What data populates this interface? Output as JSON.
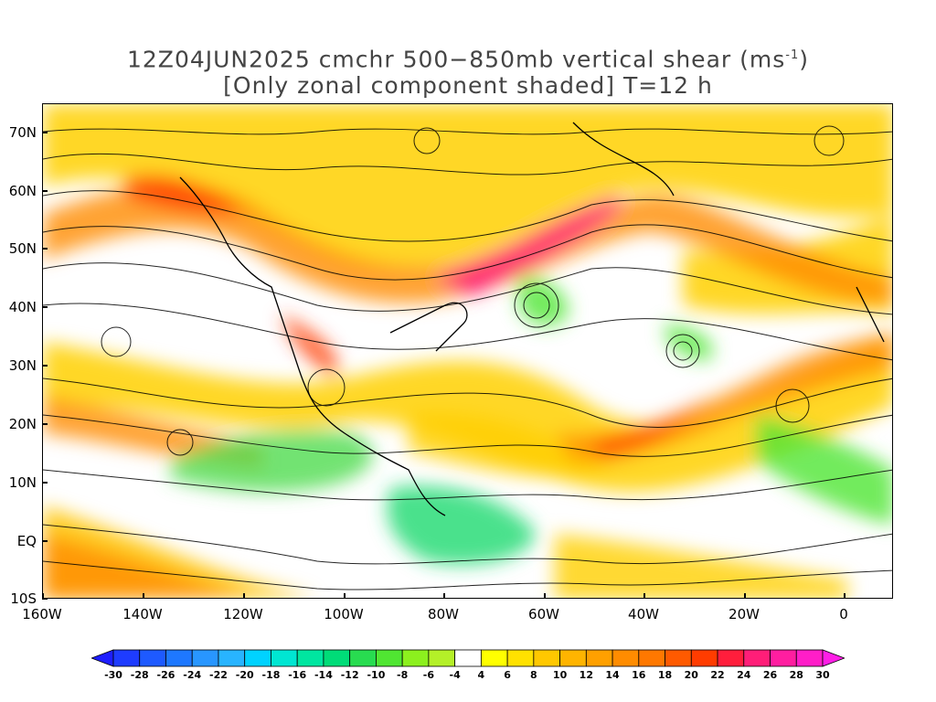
{
  "title": {
    "line1_prefix": "12Z04JUN2025 cmchr 500−850mb vertical shear (ms",
    "line1_sup": "-1",
    "line1_suffix": ")",
    "line2": "[Only zonal component shaded] T=12 h"
  },
  "axes": {
    "lat_labels": [
      "70N",
      "60N",
      "50N",
      "40N",
      "30N",
      "20N",
      "10N",
      "EQ",
      "10S"
    ],
    "lat_values": [
      70,
      60,
      50,
      40,
      30,
      20,
      10,
      0,
      -10
    ],
    "lon_labels": [
      "160W",
      "140W",
      "120W",
      "100W",
      "80W",
      "60W",
      "40W",
      "20W",
      "0"
    ],
    "lon_values": [
      -160,
      -140,
      -120,
      -100,
      -80,
      -60,
      -40,
      -20,
      0
    ],
    "lat_range": [
      -10,
      75
    ],
    "lon_range": [
      -160,
      10
    ]
  },
  "colorbar": {
    "labels": [
      "-30",
      "-28",
      "-26",
      "-24",
      "-22",
      "-20",
      "-18",
      "-16",
      "-14",
      "-12",
      "-10",
      "-8",
      "-6",
      "-4",
      "4",
      "6",
      "8",
      "10",
      "12",
      "14",
      "16",
      "18",
      "20",
      "22",
      "24",
      "26",
      "28",
      "30"
    ],
    "colors": [
      "#1e3cff",
      "#1e5aff",
      "#1e78ff",
      "#2896ff",
      "#28b4ff",
      "#00d2ff",
      "#00e6d2",
      "#00e6a0",
      "#00dc78",
      "#28dc50",
      "#50e632",
      "#8cf01e",
      "#b4f028",
      "#ffffff",
      "#ffff00",
      "#ffe100",
      "#ffc800",
      "#ffb400",
      "#ffa000",
      "#ff8c00",
      "#ff7800",
      "#ff5a00",
      "#ff3c00",
      "#ff1e3c",
      "#ff1e78",
      "#ff1ea0",
      "#ff1ec8"
    ],
    "left_arrow_color": "#1e1eff",
    "right_arrow_color": "#ff1ee6"
  }
}
